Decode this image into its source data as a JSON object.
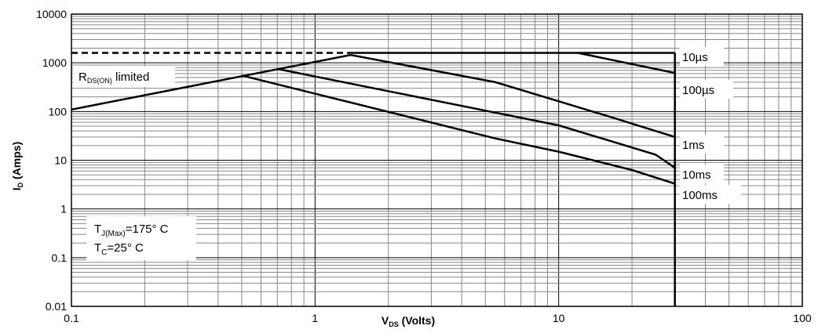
{
  "chart_data": {
    "type": "line",
    "x_scale": "log",
    "y_scale": "log",
    "xlim": [
      0.1,
      100
    ],
    "ylim": [
      0.01,
      10000
    ],
    "grid": true,
    "x_ticks": [
      "0.1",
      "1",
      "10",
      "100"
    ],
    "y_ticks": [
      "10000",
      "1000",
      "100",
      "10",
      "1",
      "0.1",
      "0.01"
    ],
    "xlabel": {
      "main": "V",
      "sub": "DS",
      "rest": " (Volts)"
    },
    "ylabel": {
      "main": "I",
      "sub": "D",
      "rest": " (Amps)"
    },
    "rds_label": {
      "main": "R",
      "sub": "DS(ON)",
      "rest": " limited"
    },
    "conditions": {
      "tj": {
        "main": "T",
        "sub": "J(Max)",
        "rest": "=175° C"
      },
      "tc": {
        "main": "T",
        "sub": "C",
        "rest": "=25° C"
      }
    },
    "rds_dashed": {
      "x": [
        0.1,
        1.4
      ],
      "y": [
        1600,
        1600
      ]
    },
    "rds_line": {
      "x": [
        0.1,
        1.4
      ],
      "y": [
        110,
        1450
      ]
    },
    "vmax_line": {
      "x": [
        30,
        30
      ],
      "y": [
        0.01,
        1600
      ]
    },
    "current_limit": {
      "x": [
        1.4,
        30
      ],
      "y": [
        1600,
        1600
      ]
    },
    "series": [
      {
        "name": "10µs",
        "x": [
          12,
          30
        ],
        "y": [
          1600,
          620
        ]
      },
      {
        "name": "100µs",
        "x": [
          1.4,
          5.5,
          16,
          30
        ],
        "y": [
          1450,
          400,
          80,
          30
        ]
      },
      {
        "name": "1ms",
        "x": [
          0.7,
          10,
          25,
          30
        ],
        "y": [
          750,
          52,
          13,
          7
        ]
      },
      {
        "name": "10ms",
        "x": [
          0.5,
          5.5,
          10,
          20,
          30
        ],
        "y": [
          550,
          28,
          15,
          6.3,
          3.3
        ]
      },
      {
        "name": "100ms",
        "x": [],
        "y": []
      }
    ]
  }
}
